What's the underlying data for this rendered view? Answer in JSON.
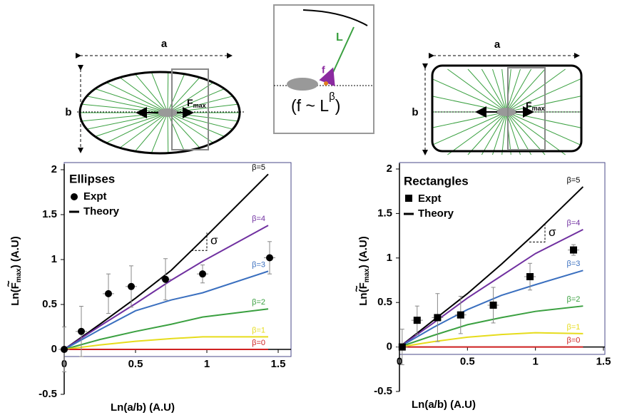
{
  "diagrams": {
    "ellipse": {
      "a": "a",
      "b": "b",
      "force": "F",
      "force_sub": "max"
    },
    "inset": {
      "length": "L",
      "force": "f",
      "law": "(f ~ L",
      "exponent": "β",
      "law_close": ")"
    },
    "rectangle": {
      "a": "a",
      "b": "b",
      "force": "F",
      "force_sub": "max"
    }
  },
  "chart_data": [
    {
      "type": "line",
      "title": "Ellipses",
      "x_label": "Ln(a/b)  (A.U)",
      "y_label": {
        "main": "Ln(F",
        "sub": "max",
        "tail": ")  (A.U)",
        "tilde": "~"
      },
      "x": [
        0,
        0.25,
        0.5,
        0.75,
        0.97,
        1.43
      ],
      "series": [
        {
          "name": "β=5",
          "color": "#000000",
          "values": [
            0,
            0.28,
            0.57,
            0.88,
            1.22,
            1.95
          ]
        },
        {
          "name": "β=4",
          "color": "#7030a0",
          "values": [
            0,
            0.26,
            0.51,
            0.77,
            0.98,
            1.38
          ]
        },
        {
          "name": "β=3",
          "color": "#3a6fbf",
          "values": [
            0,
            0.22,
            0.43,
            0.55,
            0.63,
            0.87
          ]
        },
        {
          "name": "β=2",
          "color": "#3aa040",
          "values": [
            0,
            0.11,
            0.2,
            0.28,
            0.36,
            0.45
          ]
        },
        {
          "name": "β=1",
          "color": "#e6dc1c",
          "values": [
            0,
            0.05,
            0.09,
            0.12,
            0.14,
            0.14
          ]
        },
        {
          "name": "β=0",
          "color": "#d02020",
          "values": [
            0,
            0,
            0,
            0,
            0,
            0
          ]
        }
      ],
      "expt": {
        "name": "Expt",
        "marker": "circle",
        "color": "#000000",
        "x": [
          0,
          0.12,
          0.31,
          0.47,
          0.71,
          0.97,
          1.44
        ],
        "values": [
          0,
          0.2,
          0.62,
          0.7,
          0.78,
          0.84,
          1.02
        ],
        "errors": [
          0.25,
          0.28,
          0.22,
          0.23,
          0.23,
          0.1,
          0.18
        ]
      },
      "theory_label": "Theory",
      "annotation": "σ",
      "xlim": [
        0,
        1.5
      ],
      "xticks": [
        0,
        0.5,
        1,
        1.5
      ],
      "ylim": [
        -0.5,
        2
      ],
      "yticks": [
        -0.5,
        0,
        0.5,
        1,
        1.5,
        2
      ]
    },
    {
      "type": "line",
      "title": "Rectangles",
      "x_label": "Ln(a/b)  (A.U)",
      "y_label": {
        "main": "Ln(F",
        "sub": "max",
        "tail": ")  (A.U)",
        "tilde": "~"
      },
      "x": [
        0,
        0.25,
        0.5,
        0.75,
        1.0,
        1.35
      ],
      "series": [
        {
          "name": "β=5",
          "color": "#000000",
          "values": [
            0,
            0.3,
            0.6,
            0.93,
            1.28,
            1.8
          ]
        },
        {
          "name": "β=4",
          "color": "#7030a0",
          "values": [
            0,
            0.27,
            0.55,
            0.8,
            1.05,
            1.32
          ]
        },
        {
          "name": "β=3",
          "color": "#3a6fbf",
          "values": [
            0,
            0.22,
            0.42,
            0.58,
            0.7,
            0.86
          ]
        },
        {
          "name": "β=2",
          "color": "#3aa040",
          "values": [
            0,
            0.13,
            0.25,
            0.33,
            0.4,
            0.46
          ]
        },
        {
          "name": "β=1",
          "color": "#e6dc1c",
          "values": [
            0,
            0.06,
            0.11,
            0.14,
            0.16,
            0.15
          ]
        },
        {
          "name": "β=0",
          "color": "#d02020",
          "values": [
            0,
            0,
            0,
            0,
            0,
            0
          ]
        }
      ],
      "expt": {
        "name": "Expt",
        "marker": "square",
        "color": "#000000",
        "x": [
          0.02,
          0.13,
          0.28,
          0.45,
          0.69,
          0.96,
          1.28
        ],
        "values": [
          0,
          0.3,
          0.33,
          0.36,
          0.47,
          0.79,
          1.09
        ],
        "errors": [
          0.2,
          0.16,
          0.27,
          0.21,
          0.2,
          0.15,
          0.06
        ]
      },
      "theory_label": "Theory",
      "annotation": "σ",
      "xlim": [
        0,
        1.5
      ],
      "xticks": [
        0,
        0.5,
        1,
        1.5
      ],
      "ylim": [
        -0.5,
        2
      ],
      "yticks": [
        -0.5,
        0,
        0.5,
        1,
        1.5,
        2
      ]
    }
  ]
}
